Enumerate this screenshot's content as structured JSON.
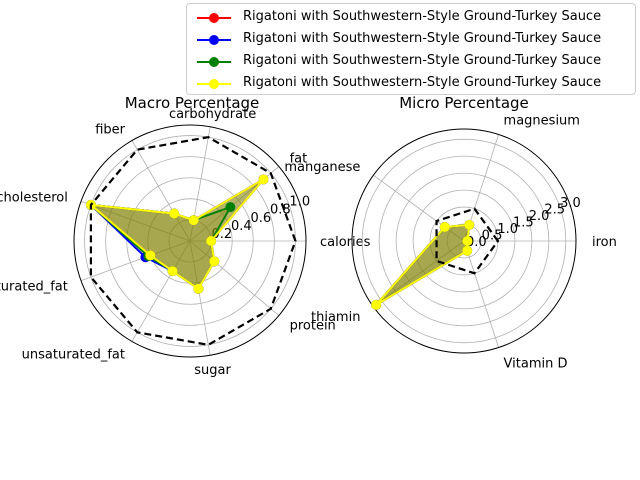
{
  "legend": {
    "placement": "upper-right",
    "entries": [
      {
        "label": "Rigatoni with Southwestern-Style Ground-Turkey Sauce",
        "color": "#ff0000"
      },
      {
        "label": "Rigatoni with Southwestern-Style Ground-Turkey Sauce",
        "color": "#0000ff"
      },
      {
        "label": "Rigatoni with Southwestern-Style Ground-Turkey Sauce",
        "color": "#008000"
      },
      {
        "label": "Rigatoni with Southwestern-Style Ground-Turkey Sauce",
        "color": "#ffff00"
      }
    ]
  },
  "chart_data": [
    {
      "type": "radar",
      "title": "Macro Percentage",
      "categories": [
        "calories",
        "fat",
        "carbohydrate",
        "fiber",
        "cholesterol",
        "saturated_fat",
        "unsaturated_fat",
        "sugar",
        "protein"
      ],
      "rlim": [
        0,
        1.1
      ],
      "rticks": [
        "0.2",
        "0.4",
        "0.6",
        "0.8",
        "1.0"
      ],
      "rtick_values": [
        0.2,
        0.4,
        0.6,
        0.8,
        1.0
      ],
      "fill_color": "#808000",
      "reference": {
        "style": "dashed",
        "color": "#000000",
        "values": [
          1.0,
          1.0,
          1.0,
          1.0,
          1.0,
          1.0,
          1.0,
          1.0,
          1.0
        ]
      },
      "series": [
        {
          "name": "Rigatoni with Southwestern-Style Ground-Turkey Sauce",
          "color": "#ff0000",
          "values": [
            0.2,
            0.91,
            0.2,
            0.3,
            1.0,
            0.4,
            0.33,
            0.46,
            0.3
          ]
        },
        {
          "name": "Rigatoni with Southwestern-Style Ground-Turkey Sauce",
          "color": "#0000ff",
          "values": [
            0.2,
            0.91,
            0.2,
            0.3,
            1.0,
            0.45,
            0.33,
            0.46,
            0.3
          ]
        },
        {
          "name": "Rigatoni with Southwestern-Style Ground-Turkey Sauce",
          "color": "#008000",
          "values": [
            0.2,
            0.5,
            0.2,
            0.3,
            1.0,
            0.42,
            0.33,
            0.46,
            0.3
          ]
        },
        {
          "name": "Rigatoni with Southwestern-Style Ground-Turkey Sauce",
          "color": "#ffff00",
          "values": [
            0.2,
            0.91,
            0.2,
            0.3,
            1.0,
            0.4,
            0.33,
            0.46,
            0.3
          ]
        }
      ]
    },
    {
      "type": "radar",
      "title": "Micro Percentage",
      "categories": [
        "iron",
        "magnesium",
        "manganese",
        "thiamin",
        "Vitamin D"
      ],
      "rlim": [
        0,
        3.3
      ],
      "rticks": [
        "0.0",
        "0.5",
        "1.0",
        "1.5",
        "2.0",
        "2.5",
        "3.0"
      ],
      "rtick_values": [
        0.0,
        0.5,
        1.0,
        1.5,
        2.0,
        2.5,
        3.0
      ],
      "fill_color": "#808000",
      "reference": {
        "style": "dashed",
        "color": "#000000",
        "values": [
          1.0,
          1.0,
          1.0,
          1.0,
          1.0
        ]
      },
      "series": [
        {
          "name": "Rigatoni with Southwestern-Style Ground-Turkey Sauce",
          "color": "#ff0000",
          "values": [
            0.1,
            0.5,
            0.7,
            3.2,
            0.3
          ]
        },
        {
          "name": "Rigatoni with Southwestern-Style Ground-Turkey Sauce",
          "color": "#0000ff",
          "values": [
            0.1,
            0.5,
            0.7,
            3.2,
            0.3
          ]
        },
        {
          "name": "Rigatoni with Southwestern-Style Ground-Turkey Sauce",
          "color": "#008000",
          "values": [
            0.1,
            0.5,
            0.7,
            3.2,
            0.3
          ]
        },
        {
          "name": "Rigatoni with Southwestern-Style Ground-Turkey Sauce",
          "color": "#ffff00",
          "values": [
            0.1,
            0.5,
            0.7,
            3.2,
            0.3
          ]
        }
      ]
    }
  ]
}
